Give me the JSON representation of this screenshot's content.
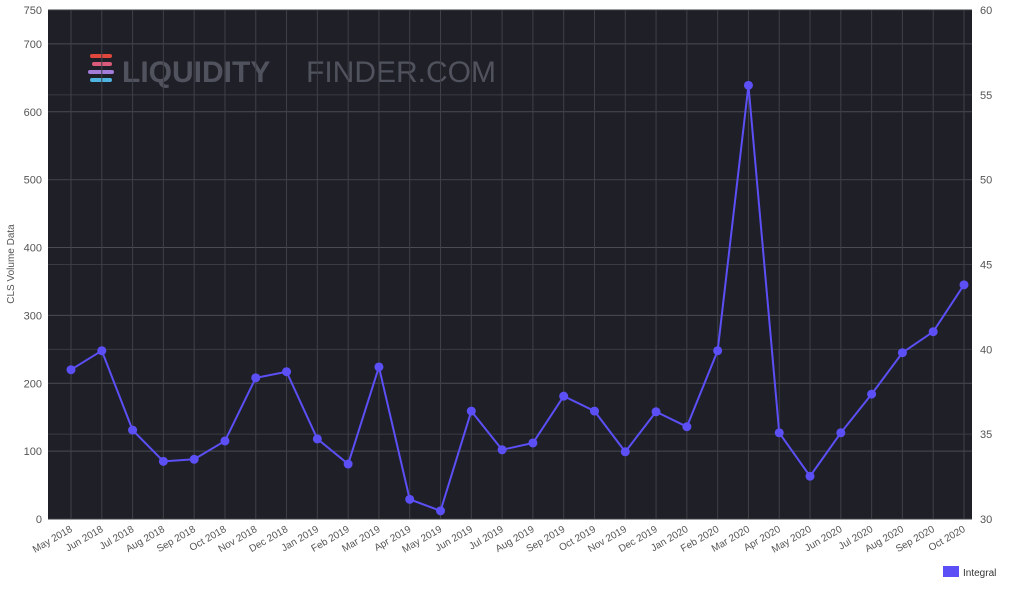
{
  "chart_data": {
    "type": "line",
    "watermark": {
      "brand": "LIQUIDITY",
      "rest": "FINDER.COM"
    },
    "y_label": "CLS Volume Data",
    "categories": [
      "May 2018",
      "Jun 2018",
      "Jul 2018",
      "Aug 2018",
      "Sep 2018",
      "Oct 2018",
      "Nov 2018",
      "Dec 2018",
      "Jan 2019",
      "Feb 2019",
      "Mar 2019",
      "Apr 2019",
      "May 2019",
      "Jun 2019",
      "Jul 2019",
      "Aug 2019",
      "Sep 2019",
      "Oct 2019",
      "Nov 2019",
      "Dec 2019",
      "Jan 2020",
      "Feb 2020",
      "Mar 2020",
      "Apr 2020",
      "May 2020",
      "Jun 2020",
      "Jul 2020",
      "Aug 2020",
      "Sep 2020",
      "Oct 2020"
    ],
    "series": [
      {
        "name": "Integral",
        "color": "#5b4ff5",
        "values": [
          220,
          248,
          131,
          85,
          88,
          115,
          208,
          217,
          118,
          81,
          224,
          29,
          12,
          159,
          102,
          112,
          181,
          159,
          99,
          158,
          136,
          248,
          639,
          127,
          63,
          127,
          184,
          245,
          276,
          345
        ]
      }
    ],
    "ylim": [
      0,
      750
    ],
    "yticks": [
      0,
      100,
      200,
      300,
      400,
      500,
      600,
      700,
      750
    ],
    "y2lim": [
      30,
      60
    ],
    "y2ticks": [
      30,
      35,
      40,
      45,
      50,
      55,
      60
    ],
    "grid": true,
    "legend": "bottom-right"
  }
}
